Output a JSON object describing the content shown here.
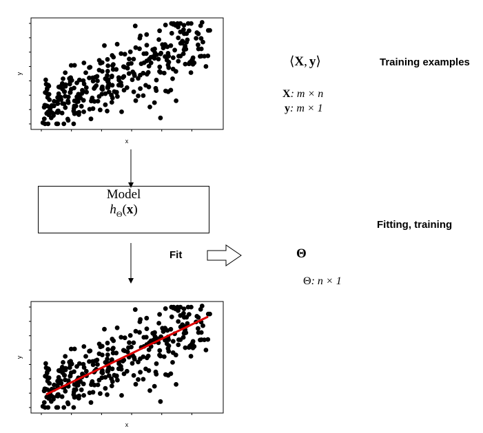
{
  "top_plot": {
    "xlabel": "x",
    "ylabel": "y"
  },
  "bottom_plot": {
    "xlabel": "x",
    "ylabel": "y",
    "fit_line_color": "#dd0000"
  },
  "notation": {
    "pair_open": "⟨",
    "pair_X": "X",
    "pair_comma": ",",
    "pair_y": "y",
    "pair_close": "⟩",
    "X_symbol": "X",
    "X_dims": ": m × n",
    "y_symbol": "y",
    "y_dims": ": m × 1",
    "theta": "Θ",
    "theta_symbol": "Θ",
    "theta_dims": ": n × 1"
  },
  "labels": {
    "training_examples": "Training examples",
    "fitting_training": "Fitting, training",
    "fit": "Fit"
  },
  "model_box": {
    "title": "Model",
    "h": "h",
    "sub": "Θ",
    "open": "(",
    "x": "x",
    "close": ")"
  },
  "chart_data": [
    {
      "type": "scatter",
      "title": "",
      "xlabel": "x",
      "ylabel": "y",
      "grid": false
    },
    {
      "type": "scatter",
      "title": "",
      "xlabel": "x",
      "ylabel": "y",
      "grid": false,
      "trendline": "linear"
    }
  ]
}
